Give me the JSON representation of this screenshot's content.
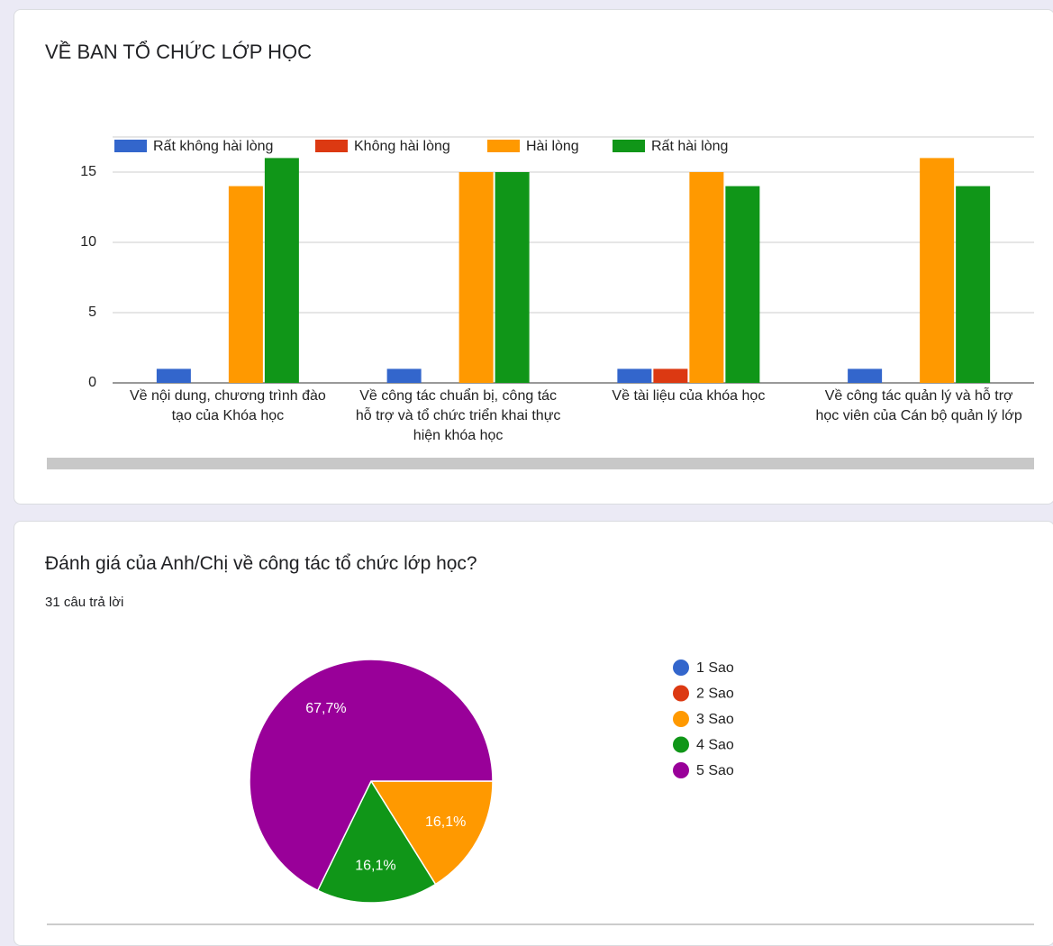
{
  "chart_data": [
    {
      "type": "bar",
      "title": "VỀ BAN TỔ CHỨC LỚP HỌC",
      "categories": [
        "Về nội dung, chương trình đào tạo của Khóa học",
        "Về công tác chuẩn bị, công tác hỗ trợ và tổ chức triển khai thực hiện khóa học",
        "Về tài liệu của khóa học",
        "Về công tác quản lý và hỗ trợ học viên của Cán bộ quản lý lớp"
      ],
      "series": [
        {
          "name": "Rất không hài lòng",
          "color": "#3366cc",
          "values": [
            1,
            1,
            1,
            1
          ]
        },
        {
          "name": "Không hài lòng",
          "color": "#dc3912",
          "values": [
            0,
            0,
            1,
            0
          ]
        },
        {
          "name": "Hài lòng",
          "color": "#ff9900",
          "values": [
            14,
            15,
            15,
            16
          ]
        },
        {
          "name": "Rất hài lòng",
          "color": "#109618",
          "values": [
            16,
            15,
            14,
            14
          ]
        }
      ],
      "ylim": [
        0,
        17.5
      ],
      "yticks": [
        0,
        5,
        10,
        15
      ],
      "grid": true,
      "legend": "top"
    },
    {
      "type": "pie",
      "title": "Đánh giá của Anh/Chị về công tác tổ chức lớp học?",
      "subtitle": "31 câu trả lời",
      "categories": [
        "1 Sao",
        "2 Sao",
        "3 Sao",
        "4 Sao",
        "5 Sao"
      ],
      "values": [
        0,
        0,
        16.1,
        16.1,
        67.7
      ],
      "value_labels": [
        null,
        null,
        "16,1%",
        "16,1%",
        "67,7%"
      ],
      "colors": [
        "#3366cc",
        "#dc3912",
        "#ff9900",
        "#109618",
        "#990099"
      ],
      "legend": "right"
    }
  ]
}
